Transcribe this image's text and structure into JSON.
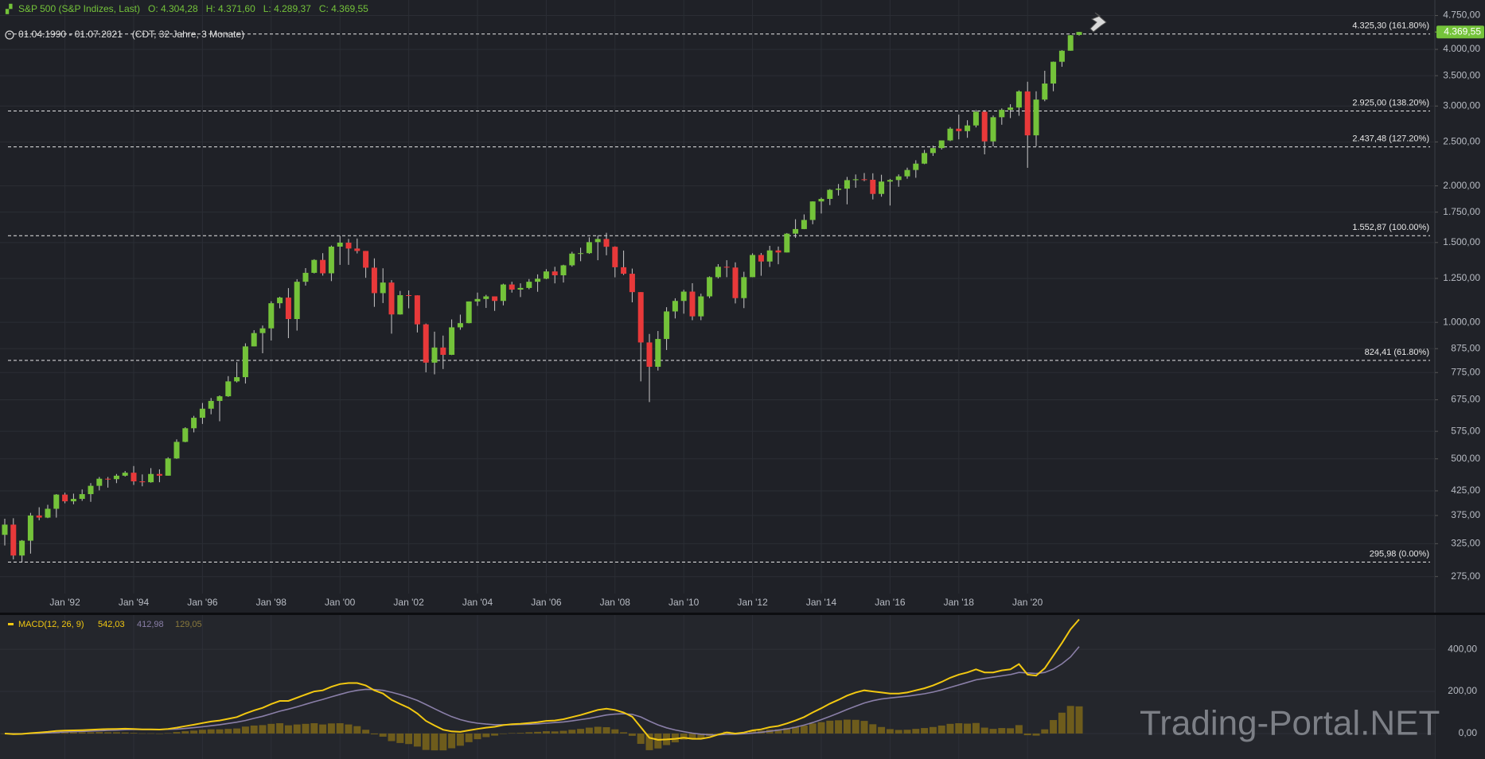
{
  "chart_data": {
    "type": "candlestick",
    "header": {
      "title": "S&P 500 (S&P Indizes, Last)",
      "ohlc_labels": [
        "O: 4.304,28",
        "H: 4.371,60",
        "L: 4.289,37",
        "C: 4.369,55"
      ],
      "range": "01.04.1990 - 01.07.2021",
      "range_note": "(CDT, 32 Jahre, 3 Monate)"
    },
    "watermark": "Trading-Portal.NET",
    "log_scale": true,
    "grid": true,
    "up_color": "#74c33a",
    "down_color": "#e8393a",
    "x": [
      "1990-04",
      "1990-07",
      "1990-10",
      "1991-01",
      "1991-04",
      "1991-07",
      "1991-10",
      "1992-01",
      "1992-04",
      "1992-07",
      "1992-10",
      "1993-01",
      "1993-04",
      "1993-07",
      "1993-10",
      "1994-01",
      "1994-04",
      "1994-07",
      "1994-10",
      "1995-01",
      "1995-04",
      "1995-07",
      "1995-10",
      "1996-01",
      "1996-04",
      "1996-07",
      "1996-10",
      "1997-01",
      "1997-04",
      "1997-07",
      "1997-10",
      "1998-01",
      "1998-04",
      "1998-07",
      "1998-10",
      "1999-01",
      "1999-04",
      "1999-07",
      "1999-10",
      "2000-01",
      "2000-04",
      "2000-07",
      "2000-10",
      "2001-01",
      "2001-04",
      "2001-07",
      "2001-10",
      "2002-01",
      "2002-04",
      "2002-07",
      "2002-10",
      "2003-01",
      "2003-04",
      "2003-07",
      "2003-10",
      "2004-01",
      "2004-04",
      "2004-07",
      "2004-10",
      "2005-01",
      "2005-04",
      "2005-07",
      "2005-10",
      "2006-01",
      "2006-04",
      "2006-07",
      "2006-10",
      "2007-01",
      "2007-04",
      "2007-07",
      "2007-10",
      "2008-01",
      "2008-04",
      "2008-07",
      "2008-10",
      "2009-01",
      "2009-04",
      "2009-07",
      "2009-10",
      "2010-01",
      "2010-04",
      "2010-07",
      "2010-10",
      "2011-01",
      "2011-04",
      "2011-07",
      "2011-10",
      "2012-01",
      "2012-04",
      "2012-07",
      "2012-10",
      "2013-01",
      "2013-04",
      "2013-07",
      "2013-10",
      "2014-01",
      "2014-04",
      "2014-07",
      "2014-10",
      "2015-01",
      "2015-04",
      "2015-07",
      "2015-10",
      "2016-01",
      "2016-04",
      "2016-07",
      "2016-10",
      "2017-01",
      "2017-04",
      "2017-07",
      "2017-10",
      "2018-01",
      "2018-04",
      "2018-07",
      "2018-10",
      "2019-01",
      "2019-04",
      "2019-07",
      "2019-10",
      "2020-01",
      "2020-04",
      "2020-07",
      "2020-10",
      "2021-01",
      "2021-04",
      "2021-07"
    ],
    "open": [
      339.9,
      358,
      306,
      330,
      375,
      371,
      388,
      417,
      403,
      408,
      418,
      436,
      452,
      451,
      459,
      466,
      446,
      444,
      463,
      459,
      501,
      545,
      584,
      616,
      645,
      671,
      687,
      741,
      757,
      885,
      947,
      970,
      1102,
      1134,
      1017,
      1229,
      1286,
      1373,
      1283,
      1469,
      1499,
      1455,
      1437,
      1320,
      1160,
      1224,
      1041,
      1148,
      1147,
      990,
      815,
      880,
      848,
      975,
      996,
      1112,
      1126,
      1141,
      1115,
      1212,
      1181,
      1191,
      1229,
      1248,
      1295,
      1270,
      1336,
      1418,
      1421,
      1503,
      1527,
      1468,
      1323,
      1280,
      1166,
      903,
      798,
      919,
      1057,
      1115,
      1169,
      1031,
      1141,
      1258,
      1326,
      1321,
      1131,
      1258,
      1408,
      1362,
      1441,
      1426,
      1569,
      1606,
      1682,
      1848,
      1872,
      1960,
      1972,
      2059,
      2068,
      2063,
      1920,
      2044,
      2060,
      2099,
      2168,
      2239,
      2363,
      2423,
      2519,
      2674,
      2641,
      2718,
      2914,
      2507,
      2834,
      2942,
      2977,
      3231,
      2585,
      3100,
      3363,
      3756,
      3973,
      4304.28
    ],
    "high": [
      368.9,
      369.8,
      331,
      380,
      391,
      396,
      418,
      421,
      419,
      428,
      442,
      456,
      456,
      463,
      470,
      482,
      462,
      477,
      474,
      504,
      552,
      587,
      622,
      664,
      681,
      690,
      761,
      817,
      899,
      961,
      984,
      1113,
      1139,
      1190,
      1245,
      1317,
      1378,
      1421,
      1477,
      1552.87,
      1528,
      1531,
      1437,
      1384,
      1316,
      1239,
      1173,
      1176,
      1147,
      994,
      954,
      935,
      1015,
      1040,
      1112,
      1163,
      1150,
      1141,
      1217,
      1229,
      1219,
      1246,
      1276,
      1310,
      1326,
      1340,
      1431,
      1461,
      1540,
      1556,
      1576,
      1471,
      1440,
      1314,
      1166,
      943,
      957,
      1080,
      1130,
      1180,
      1220,
      1157,
      1263,
      1344,
      1371,
      1356,
      1293,
      1420,
      1422,
      1475,
      1470,
      1574,
      1688,
      1730,
      1849,
      1884,
      1968,
      2019,
      2093,
      2119,
      2135,
      2132,
      2116,
      2072,
      2120,
      2194,
      2278,
      2401,
      2454,
      2519,
      2695,
      2873,
      2791,
      2941,
      2939,
      2860,
      2964,
      3028,
      3248,
      3394,
      3233,
      3588,
      3760,
      3983,
      4302,
      4371.6
    ],
    "low": [
      322,
      300,
      295.98,
      309,
      366,
      370,
      371,
      399,
      397,
      404,
      402,
      426,
      432,
      442,
      457,
      438,
      435,
      443,
      444,
      459,
      500,
      544,
      572,
      597,
      627,
      605,
      685,
      737,
      733,
      885,
      855,
      912,
      1074,
      923,
      959,
      1205,
      1282,
      1268,
      1233,
      1339,
      1339,
      1419,
      1254,
      1082,
      1103,
      944,
      1040,
      1074,
      950,
      776,
      768,
      789,
      847,
      963,
      995,
      1087,
      1076,
      1060,
      1090,
      1163,
      1137,
      1183,
      1168,
      1245,
      1219,
      1224,
      1327,
      1364,
      1416,
      1371,
      1406,
      1257,
      1272,
      1107,
      741,
      667,
      783,
      869,
      1020,
      1045,
      1011,
      1011,
      1131,
      1250,
      1258,
      1101,
      1075,
      1258,
      1267,
      1325,
      1343,
      1426,
      1536,
      1605,
      1646,
      1738,
      1814,
      1904,
      1821,
      1981,
      2048,
      1867,
      1893,
      1810,
      1991,
      2074,
      2084,
      2233,
      2329,
      2405,
      2510,
      2533,
      2553,
      2691,
      2347,
      2444,
      2728,
      2822,
      2855,
      2192,
      2447,
      3074,
      3234,
      3662,
      3973,
      4289.37
    ],
    "close": [
      358,
      306,
      330,
      375,
      371,
      388,
      417,
      403,
      408,
      418,
      436,
      452,
      451,
      459,
      466,
      446,
      444,
      463,
      459,
      501,
      545,
      584,
      616,
      645,
      671,
      687,
      741,
      757,
      885,
      947,
      970,
      1102,
      1134,
      1017,
      1229,
      1286,
      1373,
      1283,
      1469,
      1499,
      1455,
      1437,
      1320,
      1160,
      1224,
      1041,
      1148,
      1147,
      990,
      815,
      880,
      848,
      975,
      996,
      1112,
      1126,
      1141,
      1115,
      1212,
      1181,
      1191,
      1229,
      1248,
      1295,
      1270,
      1336,
      1418,
      1421,
      1503,
      1527,
      1468,
      1323,
      1280,
      1166,
      903,
      798,
      919,
      1057,
      1115,
      1169,
      1031,
      1141,
      1258,
      1326,
      1321,
      1131,
      1258,
      1408,
      1362,
      1441,
      1426,
      1569,
      1606,
      1682,
      1848,
      1872,
      1960,
      1972,
      2059,
      2068,
      2063,
      1920,
      2044,
      2060,
      2099,
      2168,
      2239,
      2363,
      2423,
      2519,
      2674,
      2641,
      2718,
      2914,
      2507,
      2834,
      2942,
      2977,
      3231,
      2585,
      3100,
      3363,
      3756,
      3973,
      4298,
      4369.55
    ],
    "last_label": "4.369,55",
    "ylim": [
      229,
      5140
    ],
    "yticks": [
      {
        "value": 275,
        "label": "275,00"
      },
      {
        "value": 325,
        "label": "325,00"
      },
      {
        "value": 375,
        "label": "375,00"
      },
      {
        "value": 425,
        "label": "425,00"
      },
      {
        "value": 500,
        "label": "500,00"
      },
      {
        "value": 575,
        "label": "575,00"
      },
      {
        "value": 675,
        "label": "675,00"
      },
      {
        "value": 775,
        "label": "775,00"
      },
      {
        "value": 875,
        "label": "875,00"
      },
      {
        "value": 1000,
        "label": "1.000,00"
      },
      {
        "value": 1250,
        "label": "1.250,00"
      },
      {
        "value": 1500,
        "label": "1.500,00"
      },
      {
        "value": 1750,
        "label": "1.750,00"
      },
      {
        "value": 2000,
        "label": "2.000,00"
      },
      {
        "value": 2500,
        "label": "2.500,00"
      },
      {
        "value": 3000,
        "label": "3.000,00"
      },
      {
        "value": 3500,
        "label": "3.500,00"
      },
      {
        "value": 4000,
        "label": "4.000,00"
      },
      {
        "value": 4750,
        "label": "4.750,00"
      }
    ],
    "xticks": [
      {
        "value": "1992-01",
        "label": "Jan '92"
      },
      {
        "value": "1994-01",
        "label": "Jan '94"
      },
      {
        "value": "1996-01",
        "label": "Jan '96"
      },
      {
        "value": "1998-01",
        "label": "Jan '98"
      },
      {
        "value": "2000-01",
        "label": "Jan '00"
      },
      {
        "value": "2002-01",
        "label": "Jan '02"
      },
      {
        "value": "2004-01",
        "label": "Jan '04"
      },
      {
        "value": "2006-01",
        "label": "Jan '06"
      },
      {
        "value": "2008-01",
        "label": "Jan '08"
      },
      {
        "value": "2010-01",
        "label": "Jan '10"
      },
      {
        "value": "2012-01",
        "label": "Jan '12"
      },
      {
        "value": "2014-01",
        "label": "Jan '14"
      },
      {
        "value": "2016-01",
        "label": "Jan '16"
      },
      {
        "value": "2018-01",
        "label": "Jan '18"
      },
      {
        "value": "2020-01",
        "label": "Jan '20"
      }
    ],
    "fib_levels": [
      {
        "value": 4325.3,
        "label": "4.325,30 (161.80%)"
      },
      {
        "value": 2925.0,
        "label": "2.925,00 (138.20%)"
      },
      {
        "value": 2437.48,
        "label": "2.437,48 (127.20%)"
      },
      {
        "value": 1552.87,
        "label": "1.552,87 (100.00%)"
      },
      {
        "value": 824.41,
        "label": "824,41 (61.80%)"
      },
      {
        "value": 295.98,
        "label": "295,98 (0.00%)"
      }
    ],
    "macd": {
      "label": "MACD(12, 26, 9)",
      "last_labels": [
        "542,03",
        "412,98",
        "129,05"
      ],
      "ylim": [
        -121,
        563
      ],
      "yticks": [
        {
          "value": 0,
          "label": "0,00"
        },
        {
          "value": 200,
          "label": "200,00"
        },
        {
          "value": 400,
          "label": "400,00"
        }
      ],
      "series": [
        {
          "kind": "line",
          "color": "#f2c811",
          "values": [
            0,
            -3,
            -2,
            2,
            5,
            8,
            12,
            14,
            15,
            16,
            18,
            20,
            21,
            22,
            23,
            22,
            20,
            20,
            19,
            22,
            28,
            35,
            42,
            50,
            57,
            62,
            70,
            78,
            95,
            110,
            122,
            140,
            155,
            155,
            170,
            185,
            200,
            205,
            222,
            235,
            240,
            240,
            228,
            205,
            190,
            160,
            140,
            122,
            95,
            60,
            38,
            18,
            10,
            8,
            15,
            22,
            28,
            32,
            40,
            44,
            46,
            50,
            54,
            60,
            62,
            68,
            78,
            88,
            100,
            112,
            118,
            112,
            100,
            80,
            30,
            -20,
            -30,
            -28,
            -25,
            -20,
            -25,
            -25,
            -18,
            -5,
            5,
            0,
            5,
            15,
            20,
            30,
            36,
            48,
            62,
            78,
            100,
            120,
            142,
            160,
            180,
            195,
            205,
            200,
            195,
            190,
            190,
            195,
            205,
            215,
            228,
            245,
            265,
            280,
            290,
            305,
            290,
            290,
            300,
            305,
            330,
            280,
            275,
            310,
            370,
            430,
            495,
            542.03
          ]
        },
        {
          "kind": "line",
          "color": "#8a7fa8",
          "values": [
            0,
            -1,
            -1,
            0,
            1,
            3,
            5,
            7,
            9,
            10,
            12,
            13,
            15,
            16,
            18,
            19,
            19,
            19,
            19,
            20,
            21,
            24,
            28,
            32,
            37,
            42,
            48,
            54,
            62,
            72,
            82,
            94,
            106,
            116,
            127,
            139,
            151,
            162,
            174,
            186,
            197,
            205,
            210,
            209,
            205,
            196,
            185,
            172,
            157,
            138,
            118,
            98,
            80,
            66,
            56,
            49,
            45,
            42,
            42,
            42,
            43,
            44,
            46,
            49,
            52,
            55,
            60,
            66,
            72,
            80,
            88,
            92,
            94,
            91,
            79,
            59,
            41,
            27,
            17,
            9,
            2,
            -3,
            -6,
            -6,
            -4,
            -3,
            -1,
            2,
            6,
            11,
            16,
            22,
            30,
            40,
            52,
            66,
            81,
            97,
            114,
            130,
            145,
            156,
            164,
            169,
            173,
            177,
            183,
            189,
            197,
            207,
            219,
            231,
            243,
            255,
            262,
            268,
            274,
            280,
            290,
            288,
            285,
            290,
            306,
            331,
            364,
            412.98
          ]
        },
        {
          "kind": "histogram",
          "color": "#6e5c1c",
          "values": [
            0,
            -2,
            -1,
            2,
            4,
            5,
            7,
            7,
            6,
            6,
            6,
            7,
            6,
            6,
            5,
            3,
            1,
            1,
            0,
            2,
            7,
            11,
            14,
            18,
            20,
            20,
            22,
            24,
            33,
            38,
            40,
            46,
            49,
            39,
            43,
            46,
            49,
            43,
            48,
            49,
            43,
            35,
            18,
            -4,
            -15,
            -36,
            -45,
            -50,
            -62,
            -78,
            -80,
            -80,
            -70,
            -58,
            -41,
            -27,
            -17,
            -10,
            -2,
            2,
            3,
            6,
            8,
            11,
            10,
            13,
            18,
            22,
            28,
            32,
            30,
            20,
            6,
            -11,
            -49,
            -79,
            -71,
            -55,
            -42,
            -29,
            -27,
            -22,
            -12,
            1,
            9,
            3,
            6,
            13,
            14,
            19,
            20,
            26,
            32,
            38,
            48,
            54,
            61,
            63,
            66,
            65,
            60,
            44,
            31,
            21,
            17,
            18,
            22,
            26,
            31,
            38,
            46,
            49,
            47,
            50,
            28,
            22,
            26,
            25,
            40,
            -8,
            -10,
            20,
            64,
            99,
            131,
            129.05
          ]
        }
      ]
    }
  }
}
